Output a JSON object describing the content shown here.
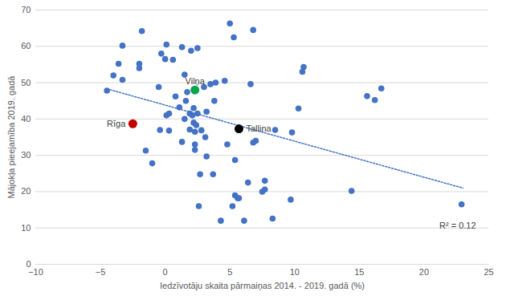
{
  "chart_data": {
    "type": "scatter",
    "x_label": "Iedzīvotāju skaita pārmaiņas 2014. - 2019. gadā (%)",
    "y_label": "Mājokļa pieejamība 2019. gadā",
    "xlim": [
      -10,
      25
    ],
    "xticks": [
      -10,
      -5,
      0,
      5,
      10,
      15,
      20,
      25
    ],
    "ylim": [
      0,
      70
    ],
    "yticks": [
      0,
      10,
      20,
      30,
      40,
      50,
      60,
      70
    ],
    "grid": true,
    "color": "#4472c4",
    "x": [
      -4.5,
      -4.0,
      -3.6,
      -3.3,
      -3.3,
      -2.0,
      -2.0,
      -1.8,
      -1.5,
      -1.0,
      -0.5,
      -0.4,
      -0.3,
      0.0,
      0.1,
      0.1,
      0.3,
      0.3,
      0.6,
      0.8,
      1.1,
      1.3,
      1.3,
      1.5,
      1.5,
      1.6,
      1.7,
      1.9,
      1.9,
      2.0,
      2.1,
      2.2,
      2.2,
      2.3,
      2.3,
      2.3,
      2.4,
      2.5,
      2.5,
      2.6,
      2.7,
      2.8,
      3.0,
      3.1,
      3.2,
      3.2,
      3.5,
      3.7,
      3.8,
      3.9,
      4.3,
      4.6,
      4.8,
      5.0,
      5.2,
      5.3,
      5.4,
      5.4,
      5.6,
      5.7,
      6.1,
      6.4,
      6.6,
      6.8,
      6.8,
      7.0,
      7.5,
      7.7,
      7.7,
      8.3,
      8.5,
      9.7,
      9.8,
      10.3,
      10.6,
      10.7,
      14.4,
      15.6,
      16.2,
      16.7,
      22.9
    ],
    "y": [
      47.8,
      52.0,
      55.2,
      60.2,
      50.8,
      54.0,
      55.2,
      64.2,
      31.3,
      27.8,
      48.8,
      37.0,
      58.0,
      56.5,
      60.5,
      41.0,
      36.8,
      41.5,
      56.3,
      46.2,
      43.2,
      33.7,
      59.8,
      52.2,
      40.0,
      45.0,
      47.4,
      37.1,
      41.5,
      58.8,
      41.0,
      39.0,
      43.0,
      33.0,
      31.5,
      36.5,
      38.3,
      59.5,
      41.5,
      16.0,
      24.8,
      36.9,
      48.8,
      35.0,
      29.7,
      42.0,
      49.6,
      24.8,
      45.0,
      50.0,
      12.0,
      50.5,
      33.0,
      66.3,
      16.0,
      62.5,
      28.7,
      19.0,
      18.2,
      18.2,
      12.0,
      22.5,
      49.6,
      64.5,
      33.5,
      34.0,
      20.0,
      23.0,
      20.6,
      12.6,
      37.0,
      17.8,
      36.3,
      42.9,
      53.0,
      54.3,
      20.2,
      46.3,
      45.2,
      48.4,
      16.5
    ],
    "highlights": [
      {
        "label": "Rīga",
        "x": -2.5,
        "y": 38.7,
        "color": "#c00000"
      },
      {
        "label": "Vilņa",
        "x": 2.3,
        "y": 48.0,
        "color": "#00a550"
      },
      {
        "label": "Tallina",
        "x": 5.7,
        "y": 37.3,
        "color": "#000000"
      }
    ],
    "trendline": {
      "x": [
        -4.5,
        23.0
      ],
      "y": [
        48.3,
        21.0
      ],
      "line_style": "dotted"
    },
    "annotations": [
      {
        "text": "R² = 0.12",
        "x": 22.6,
        "y": 10.5
      }
    ]
  }
}
